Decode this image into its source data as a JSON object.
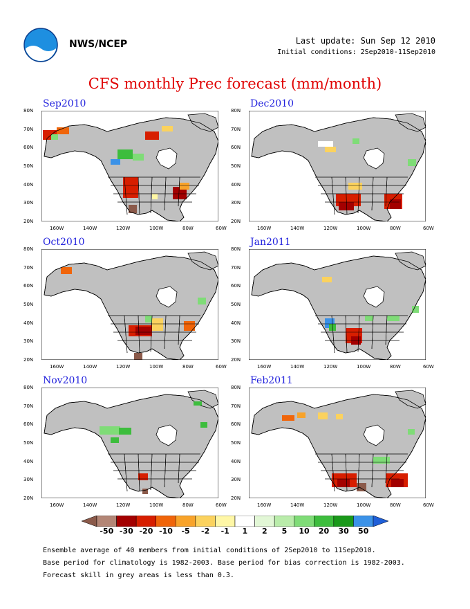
{
  "header": {
    "org": "NWS/NCEP",
    "last_update": "Last update: Sun Sep 12 2010",
    "initial_conditions": "Initial conditions: 2Sep2010-11Sep2010",
    "logo_text": "noaa"
  },
  "title": "CFS monthly Prec forecast (mm/month)",
  "axes": {
    "lat_labels": [
      "80N",
      "70N",
      "60N",
      "50N",
      "40N",
      "30N",
      "20N"
    ],
    "lon_labels": [
      "160W",
      "140W",
      "120W",
      "100W",
      "80W",
      "60W"
    ]
  },
  "panels": [
    {
      "label": "Sep2010"
    },
    {
      "label": "Dec2010"
    },
    {
      "label": "Oct2010"
    },
    {
      "label": "Jan2011"
    },
    {
      "label": "Nov2010"
    },
    {
      "label": "Feb2011"
    }
  ],
  "colorbar": {
    "labels": [
      "-50",
      "-30",
      "-20",
      "-10",
      "-5",
      "-2",
      "-1",
      "1",
      "2",
      "5",
      "10",
      "20",
      "30",
      "50"
    ],
    "colors": [
      "#8b5a4a",
      "#b38676",
      "#a30000",
      "#d71e00",
      "#f0650a",
      "#f8a32a",
      "#fbd25e",
      "#fff7a6",
      "#ffffff",
      "#e2f7d6",
      "#b9ecaa",
      "#7fdc77",
      "#3dbd3d",
      "#1a991a",
      "#3b92e8",
      "#1f5fd8"
    ]
  },
  "colors": {
    "land_grey": "#c0c0c0",
    "border": "#000000",
    "title_red": "#e00000",
    "label_blue": "#2222dd"
  },
  "footer": {
    "line1": "Ensemble average of 40 members from initial conditions of 2Sep2010 to 11Sep2010.",
    "line2": "Base period for climatology is 1982-2003. Base period for bias correction is 1982-2003.",
    "line3": "Forecast skill in grey areas is less than 0.3."
  }
}
